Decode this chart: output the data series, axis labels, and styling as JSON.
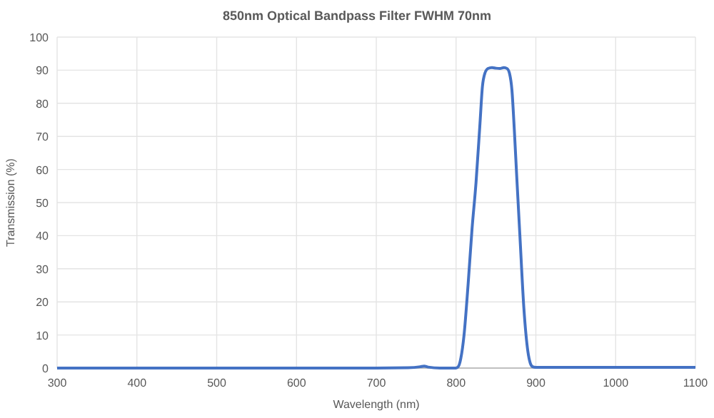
{
  "chart_data": {
    "type": "line",
    "title": "850nm Optical Bandpass Filter FWHM 70nm",
    "xlabel": "Wavelength (nm)",
    "ylabel": "Transmission (%)",
    "x": [
      300,
      400,
      500,
      600,
      700,
      740,
      755,
      760,
      765,
      780,
      800,
      803,
      806,
      810,
      815,
      820,
      825,
      830,
      833,
      836,
      840,
      845,
      850,
      855,
      860,
      864,
      867,
      870,
      873,
      876,
      880,
      885,
      890,
      893,
      896,
      900,
      1000,
      1100
    ],
    "series": [
      {
        "color": "#4472c4",
        "values": [
          0,
          0,
          0,
          0,
          0,
          0.1,
          0.4,
          0.6,
          0.3,
          0,
          0,
          0.5,
          3,
          10,
          25,
          42,
          56,
          74,
          85,
          89,
          90.5,
          90.8,
          90.6,
          90.5,
          90.8,
          90.5,
          89,
          84,
          72,
          58,
          40,
          18,
          5,
          1.5,
          0.4,
          0.2,
          0.2,
          0.2
        ]
      }
    ],
    "xlim": [
      300,
      1100
    ],
    "xticks": [
      300,
      400,
      500,
      600,
      700,
      800,
      900,
      1000,
      1100
    ],
    "ylim": [
      0,
      100
    ],
    "yticks": [
      0,
      10,
      20,
      30,
      40,
      50,
      60,
      70,
      80,
      90,
      100
    ],
    "grid": true,
    "line_style": "solid",
    "marker": "none"
  }
}
